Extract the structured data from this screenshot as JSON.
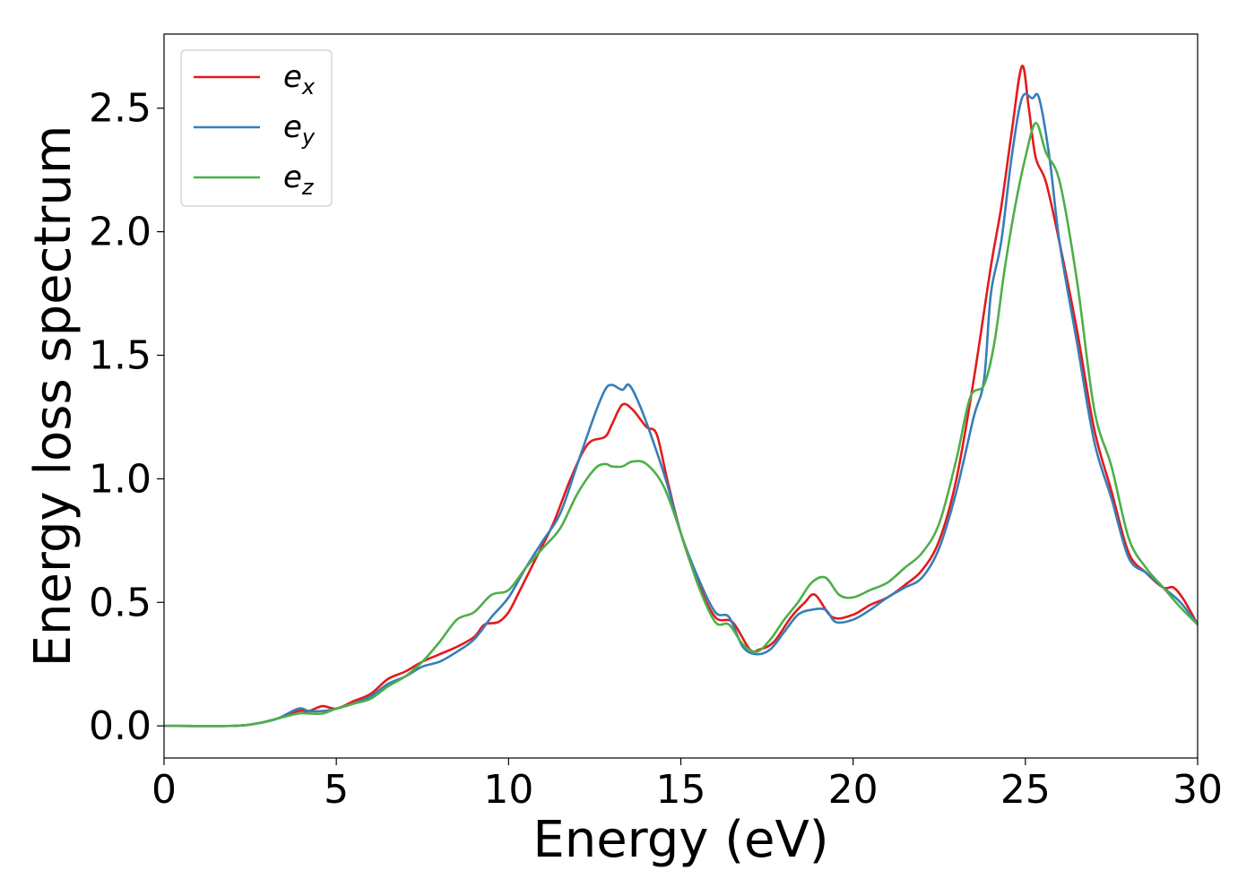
{
  "chart_data": {
    "type": "line",
    "xlabel": "Energy (eV)",
    "ylabel": "Energy loss spectrum",
    "xlim": [
      0,
      30
    ],
    "ylim": [
      -0.13,
      2.8
    ],
    "xticks": [
      "0",
      "5",
      "10",
      "15",
      "20",
      "25",
      "30"
    ],
    "yticks": [
      "0.0",
      "0.5",
      "1.0",
      "1.5",
      "2.0",
      "2.5"
    ],
    "grid": false,
    "legend_position": "top-left",
    "series": [
      {
        "name": "e",
        "sub": "x",
        "color": "#e41a1c",
        "x": [
          0,
          2,
          2.7,
          3.3,
          3.9,
          4.2,
          4.6,
          5.0,
          5.5,
          6.0,
          6.5,
          7.0,
          7.5,
          8.0,
          8.5,
          9.0,
          9.3,
          9.7,
          10.0,
          10.3,
          10.8,
          11.3,
          11.8,
          12.3,
          12.8,
          13.0,
          13.3,
          13.6,
          14.0,
          14.3,
          14.6,
          15.0,
          15.5,
          16.0,
          16.5,
          17.0,
          17.3,
          17.7,
          18.2,
          18.6,
          18.9,
          19.4,
          20.0,
          20.5,
          21.0,
          21.5,
          22.0,
          22.5,
          23.0,
          23.5,
          24.0,
          24.3,
          24.6,
          24.9,
          25.1,
          25.3,
          25.6,
          26.0,
          26.5,
          27.0,
          27.5,
          28.0,
          28.5,
          29.0,
          29.3,
          29.6,
          30.0
        ],
        "y": [
          0.0,
          0.0,
          0.01,
          0.03,
          0.06,
          0.06,
          0.08,
          0.07,
          0.1,
          0.13,
          0.19,
          0.22,
          0.26,
          0.29,
          0.32,
          0.36,
          0.41,
          0.42,
          0.46,
          0.54,
          0.68,
          0.82,
          1.0,
          1.14,
          1.17,
          1.22,
          1.3,
          1.28,
          1.21,
          1.18,
          1.0,
          0.78,
          0.58,
          0.44,
          0.42,
          0.31,
          0.31,
          0.34,
          0.44,
          0.5,
          0.53,
          0.44,
          0.45,
          0.49,
          0.52,
          0.57,
          0.63,
          0.75,
          1.0,
          1.4,
          1.86,
          2.1,
          2.4,
          2.67,
          2.5,
          2.3,
          2.2,
          1.95,
          1.6,
          1.2,
          0.95,
          0.7,
          0.62,
          0.56,
          0.56,
          0.51,
          0.41
        ]
      },
      {
        "name": "e",
        "sub": "y",
        "color": "#377eb8",
        "x": [
          0,
          2,
          2.7,
          3.3,
          3.9,
          4.2,
          4.6,
          5.0,
          5.5,
          6.0,
          6.5,
          7.0,
          7.5,
          8.0,
          8.5,
          9.0,
          9.5,
          10.0,
          10.5,
          11.0,
          11.5,
          12.0,
          12.5,
          12.8,
          13.0,
          13.3,
          13.5,
          13.8,
          14.2,
          14.6,
          15.0,
          15.5,
          16.0,
          16.4,
          16.8,
          17.2,
          17.6,
          18.0,
          18.4,
          18.8,
          19.2,
          19.5,
          20.0,
          20.5,
          21.0,
          21.5,
          22.0,
          22.5,
          23.0,
          23.5,
          23.8,
          24.0,
          24.3,
          24.6,
          24.9,
          25.2,
          25.4,
          25.7,
          26.0,
          26.5,
          27.0,
          27.5,
          28.0,
          28.5,
          29.0,
          29.5,
          30.0
        ],
        "y": [
          0.0,
          0.0,
          0.01,
          0.03,
          0.07,
          0.06,
          0.06,
          0.07,
          0.09,
          0.12,
          0.17,
          0.2,
          0.24,
          0.26,
          0.3,
          0.35,
          0.44,
          0.52,
          0.64,
          0.75,
          0.86,
          1.06,
          1.26,
          1.36,
          1.38,
          1.36,
          1.38,
          1.3,
          1.15,
          0.98,
          0.78,
          0.6,
          0.46,
          0.44,
          0.32,
          0.29,
          0.31,
          0.38,
          0.45,
          0.47,
          0.47,
          0.42,
          0.43,
          0.47,
          0.52,
          0.56,
          0.6,
          0.72,
          0.95,
          1.25,
          1.4,
          1.75,
          1.96,
          2.3,
          2.54,
          2.54,
          2.54,
          2.3,
          1.95,
          1.55,
          1.15,
          0.92,
          0.68,
          0.62,
          0.56,
          0.5,
          0.41
        ]
      },
      {
        "name": "e",
        "sub": "z",
        "color": "#4daf4a",
        "x": [
          0,
          2,
          2.7,
          3.3,
          3.9,
          4.2,
          4.6,
          5.0,
          5.5,
          6.0,
          6.5,
          7.0,
          7.5,
          8.0,
          8.5,
          9.0,
          9.5,
          10.0,
          10.5,
          11.0,
          11.5,
          12.0,
          12.5,
          12.8,
          13.0,
          13.3,
          13.6,
          14.0,
          14.5,
          15.0,
          15.5,
          16.0,
          16.4,
          16.8,
          17.2,
          17.6,
          18.0,
          18.4,
          18.8,
          19.2,
          19.6,
          20.0,
          20.5,
          21.0,
          21.5,
          22.0,
          22.5,
          23.0,
          23.4,
          23.8,
          24.1,
          24.4,
          24.7,
          25.0,
          25.3,
          25.6,
          26.0,
          26.5,
          27.0,
          27.5,
          28.0,
          28.5,
          29.0,
          29.5,
          30.0
        ],
        "y": [
          0.0,
          0.0,
          0.01,
          0.03,
          0.05,
          0.05,
          0.05,
          0.07,
          0.09,
          0.11,
          0.16,
          0.2,
          0.26,
          0.34,
          0.43,
          0.46,
          0.53,
          0.55,
          0.64,
          0.72,
          0.8,
          0.94,
          1.04,
          1.06,
          1.05,
          1.05,
          1.07,
          1.06,
          0.97,
          0.78,
          0.57,
          0.42,
          0.41,
          0.33,
          0.3,
          0.35,
          0.43,
          0.5,
          0.58,
          0.6,
          0.53,
          0.52,
          0.55,
          0.58,
          0.64,
          0.7,
          0.82,
          1.08,
          1.33,
          1.38,
          1.55,
          1.85,
          2.1,
          2.3,
          2.44,
          2.32,
          2.2,
          1.8,
          1.28,
          1.05,
          0.76,
          0.64,
          0.56,
          0.48,
          0.41
        ]
      }
    ]
  }
}
